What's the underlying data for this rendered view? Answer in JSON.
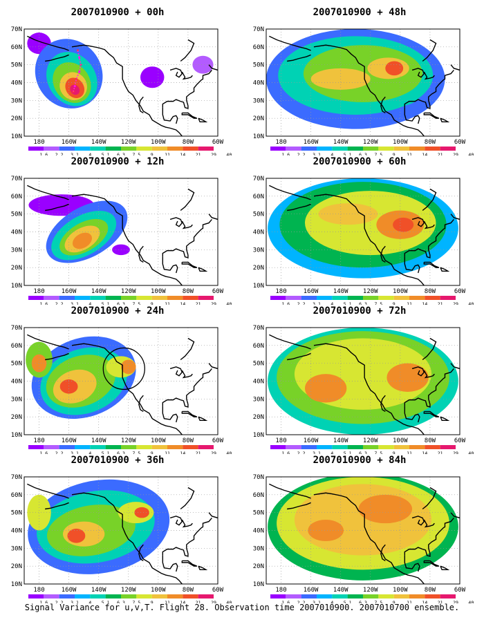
{
  "colors": [
    "#9a00ff",
    "#b35bff",
    "#3b6bff",
    "#00b4ff",
    "#00d2b4",
    "#00b450",
    "#78d228",
    "#d7e632",
    "#f0c23c",
    "#f08c28",
    "#f05028",
    "#e6186e"
  ],
  "legend_labels": [
    "1.6",
    "2.2",
    "3.1",
    "4",
    "5.1",
    "6.3",
    "7.5",
    "9",
    "11",
    "14",
    "21",
    "29",
    "40"
  ],
  "lon_labels": [
    "180",
    "160W",
    "140W",
    "120W",
    "100W",
    "80W",
    "60W"
  ],
  "lat_labels": [
    "10N",
    "20N",
    "30N",
    "40N",
    "50N",
    "60N",
    "70N"
  ],
  "caption": "Signal Variance for u,v,T. Flight 28. Observation time 2007010900. 2007010700 ensemble.",
  "chart_data": [
    {
      "type": "heatmap",
      "title": "2007010900 + 00h",
      "lead_hours": 0,
      "max_level": 12,
      "features": [
        "isolated signal variance maximum off US west coast",
        "flight track shown as dotted line"
      ],
      "circle": false,
      "track": true
    },
    {
      "type": "heatmap",
      "title": "2007010900 + 12h",
      "lead_hours": 12,
      "max_level": 10,
      "features": [
        "maximum moving toward coast"
      ],
      "circle": false,
      "track": false
    },
    {
      "type": "heatmap",
      "title": "2007010900 + 24h",
      "lead_hours": 24,
      "max_level": 11,
      "features": [
        "verification circle over Pacific Northwest"
      ],
      "circle": true,
      "track": false
    },
    {
      "type": "heatmap",
      "title": "2007010900 + 36h",
      "lead_hours": 36,
      "max_level": 11,
      "features": [
        "signal spreading inland"
      ],
      "circle": false,
      "track": false
    },
    {
      "type": "heatmap",
      "title": "2007010900 + 48h",
      "lead_hours": 48,
      "max_level": 11,
      "features": [
        "signal over North America"
      ],
      "circle": false,
      "track": false
    },
    {
      "type": "heatmap",
      "title": "2007010900 + 60h",
      "lead_hours": 60,
      "max_level": 11,
      "features": [
        "signal over central US"
      ],
      "circle": false,
      "track": false
    },
    {
      "type": "heatmap",
      "title": "2007010900 + 72h",
      "lead_hours": 72,
      "max_level": 10,
      "features": [
        "widespread signal"
      ],
      "circle": false,
      "track": false
    },
    {
      "type": "heatmap",
      "title": "2007010900 + 84h",
      "lead_hours": 84,
      "max_level": 10,
      "features": [
        "widespread signal"
      ],
      "circle": false,
      "track": false
    }
  ]
}
